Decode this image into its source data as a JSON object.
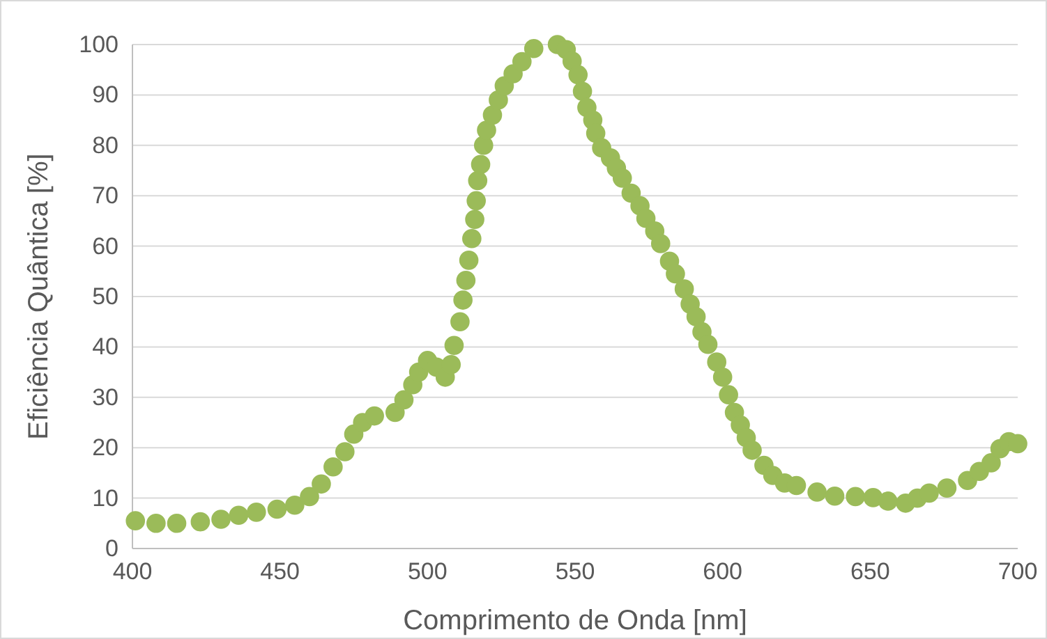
{
  "chart_data": {
    "type": "scatter",
    "xlabel": "Comprimento de Onda [nm]",
    "ylabel": "Eficiência Quântica [%]",
    "xlim": [
      400,
      700
    ],
    "xticks": [
      400,
      450,
      500,
      550,
      600,
      650,
      700
    ],
    "ylim": [
      0,
      100
    ],
    "yticks": [
      0,
      10,
      20,
      30,
      40,
      50,
      60,
      70,
      80,
      90,
      100
    ],
    "grid": "y",
    "marker": "circle",
    "x": [
      401,
      408,
      415,
      423,
      430,
      436,
      442,
      449,
      455,
      460,
      464,
      468,
      472,
      475,
      478,
      482,
      489,
      492,
      495,
      497,
      500,
      503,
      506,
      508,
      509,
      511,
      512,
      513,
      514,
      515,
      516,
      516.5,
      517,
      518,
      519,
      520,
      522,
      524,
      526,
      529,
      532,
      536,
      544,
      547,
      549,
      551,
      552.5,
      554,
      556,
      557,
      559,
      562,
      564,
      566,
      569,
      572,
      574,
      577,
      579,
      582,
      584,
      587,
      589,
      591,
      593,
      595,
      598,
      600,
      602,
      604,
      606,
      608,
      610,
      614,
      617,
      621,
      625,
      632,
      638,
      645,
      651,
      656,
      662,
      666,
      670,
      676,
      683,
      687,
      691,
      694,
      697,
      700
    ],
    "series": [
      {
        "color": "#9bbb59",
        "values": [
          5.5,
          5.0,
          5.0,
          5.3,
          5.8,
          6.6,
          7.2,
          7.8,
          8.6,
          10.3,
          12.8,
          16.2,
          19.2,
          22.7,
          25.0,
          26.3,
          27.0,
          29.5,
          32.5,
          35.0,
          37.3,
          36.0,
          34.0,
          36.5,
          40.3,
          45.0,
          49.3,
          53.2,
          57.2,
          61.5,
          65.3,
          69.0,
          73.0,
          76.2,
          80.0,
          83.0,
          86.0,
          89.0,
          91.8,
          94.2,
          96.6,
          99.2,
          100.0,
          99.0,
          96.7,
          94.0,
          90.7,
          87.5,
          85.0,
          82.4,
          79.5,
          77.5,
          75.5,
          73.5,
          70.5,
          68.0,
          65.5,
          63.0,
          60.5,
          57.0,
          54.5,
          51.5,
          48.5,
          46.0,
          43.0,
          40.5,
          37.0,
          34.0,
          30.5,
          27.0,
          24.5,
          22.0,
          19.5,
          16.5,
          14.5,
          13.0,
          12.5,
          11.2,
          10.4,
          10.3,
          10.1,
          9.4,
          9.0,
          10.0,
          11.0,
          12.0,
          13.5,
          15.3,
          17.0,
          19.8,
          21.2,
          20.8
        ]
      }
    ]
  }
}
